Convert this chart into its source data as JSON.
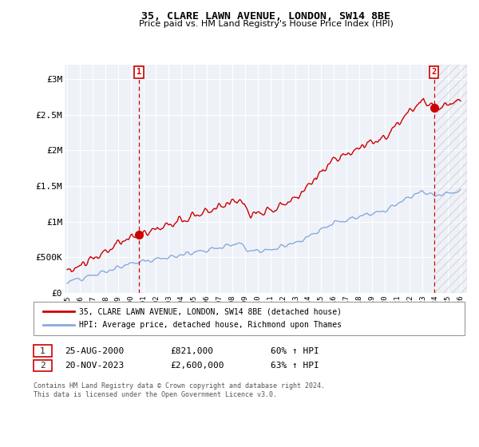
{
  "title": "35, CLARE LAWN AVENUE, LONDON, SW14 8BE",
  "subtitle": "Price paid vs. HM Land Registry's House Price Index (HPI)",
  "ylabel_ticks": [
    "£0",
    "£500K",
    "£1M",
    "£1.5M",
    "£2M",
    "£2.5M",
    "£3M"
  ],
  "ytick_values": [
    0,
    500000,
    1000000,
    1500000,
    2000000,
    2500000,
    3000000
  ],
  "ylim": [
    0,
    3200000
  ],
  "xlim_start": 1994.8,
  "xlim_end": 2026.5,
  "sale1_date": 2000.65,
  "sale1_price": 821000,
  "sale2_date": 2023.9,
  "sale2_price": 2600000,
  "property_color": "#cc0000",
  "hpi_color": "#88aadd",
  "vline_color": "#cc0000",
  "legend_property": "35, CLARE LAWN AVENUE, LONDON, SW14 8BE (detached house)",
  "legend_hpi": "HPI: Average price, detached house, Richmond upon Thames",
  "annotation1": [
    "1",
    "25-AUG-2000",
    "£821,000",
    "60% ↑ HPI"
  ],
  "annotation2": [
    "2",
    "20-NOV-2023",
    "£2,600,000",
    "63% ↑ HPI"
  ],
  "footer": "Contains HM Land Registry data © Crown copyright and database right 2024.\nThis data is licensed under the Open Government Licence v3.0.",
  "background_color": "#eef2f8",
  "grid_color": "#ffffff",
  "xticks": [
    1995,
    1996,
    1997,
    1998,
    1999,
    2000,
    2001,
    2002,
    2003,
    2004,
    2005,
    2006,
    2007,
    2008,
    2009,
    2010,
    2011,
    2012,
    2013,
    2014,
    2015,
    2016,
    2017,
    2018,
    2019,
    2020,
    2021,
    2022,
    2023,
    2024,
    2025,
    2026
  ]
}
